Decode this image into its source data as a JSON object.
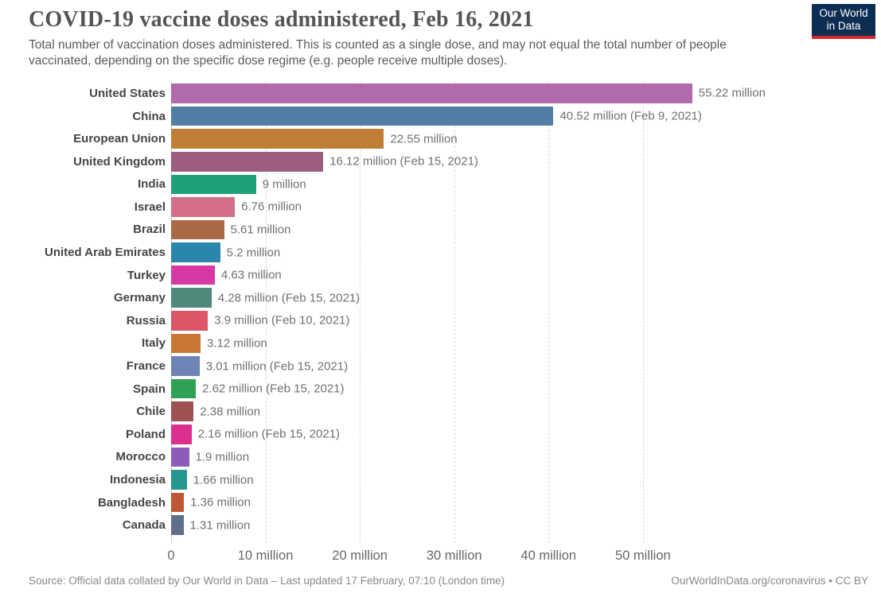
{
  "header": {
    "title": "COVID-19 vaccine doses administered, Feb 16, 2021",
    "subtitle": "Total number of vaccination doses administered. This is counted as a single dose, and may not equal the total number of people vaccinated, depending on the specific dose regime (e.g. people receive multiple doses).",
    "logo": {
      "line1": "Our World",
      "line2": "in Data",
      "bg_color": "#0d2d52",
      "accent_color": "#d7262c"
    }
  },
  "chart_data": {
    "type": "bar",
    "orientation": "horizontal",
    "title": "COVID-19 vaccine doses administered, Feb 16, 2021",
    "xlabel": "",
    "ylabel": "",
    "grid": "vertical-dashed",
    "xlim_million": [
      0,
      73.8
    ],
    "x_ticks": [
      {
        "value": 0,
        "label": "0"
      },
      {
        "value": 10,
        "label": "10 million"
      },
      {
        "value": 20,
        "label": "20 million"
      },
      {
        "value": 30,
        "label": "30 million"
      },
      {
        "value": 40,
        "label": "40 million"
      },
      {
        "value": 50,
        "label": "50 million"
      }
    ],
    "bars": [
      {
        "name": "United States",
        "value_million": 55.22,
        "label": "55.22 million",
        "note": "",
        "color": "#b16bac"
      },
      {
        "name": "China",
        "value_million": 40.52,
        "label": "40.52 million (Feb 9, 2021)",
        "note": "Feb 9, 2021",
        "color": "#527ea5"
      },
      {
        "name": "European Union",
        "value_million": 22.55,
        "label": "22.55 million",
        "note": "",
        "color": "#bf7d35"
      },
      {
        "name": "United Kingdom",
        "value_million": 16.12,
        "label": "16.12 million (Feb 15, 2021)",
        "note": "Feb 15, 2021",
        "color": "#9c5d7e"
      },
      {
        "name": "India",
        "value_million": 9,
        "label": "9 million",
        "note": "",
        "color": "#1fa078"
      },
      {
        "name": "Israel",
        "value_million": 6.76,
        "label": "6.76 million",
        "note": "",
        "color": "#d26e85"
      },
      {
        "name": "Brazil",
        "value_million": 5.61,
        "label": "5.61 million",
        "note": "",
        "color": "#aa6a48"
      },
      {
        "name": "United Arab Emirates",
        "value_million": 5.2,
        "label": "5.2 million",
        "note": "",
        "color": "#2c85ad"
      },
      {
        "name": "Turkey",
        "value_million": 4.63,
        "label": "4.63 million",
        "note": "",
        "color": "#d639a4"
      },
      {
        "name": "Germany",
        "value_million": 4.28,
        "label": "4.28 million (Feb 15, 2021)",
        "note": "Feb 15, 2021",
        "color": "#4f897b"
      },
      {
        "name": "Russia",
        "value_million": 3.9,
        "label": "3.9 million (Feb 10, 2021)",
        "note": "Feb 10, 2021",
        "color": "#dc5667"
      },
      {
        "name": "Italy",
        "value_million": 3.12,
        "label": "3.12 million",
        "note": "",
        "color": "#ca7634"
      },
      {
        "name": "France",
        "value_million": 3.01,
        "label": "3.01 million (Feb 15, 2021)",
        "note": "Feb 15, 2021",
        "color": "#6e84b6"
      },
      {
        "name": "Spain",
        "value_million": 2.62,
        "label": "2.62 million (Feb 15, 2021)",
        "note": "Feb 15, 2021",
        "color": "#2ea153"
      },
      {
        "name": "Chile",
        "value_million": 2.38,
        "label": "2.38 million",
        "note": "",
        "color": "#9e5253"
      },
      {
        "name": "Poland",
        "value_million": 2.16,
        "label": "2.16 million (Feb 15, 2021)",
        "note": "Feb 15, 2021",
        "color": "#dd2f90"
      },
      {
        "name": "Morocco",
        "value_million": 1.9,
        "label": "1.9 million",
        "note": "",
        "color": "#8b5cb9"
      },
      {
        "name": "Indonesia",
        "value_million": 1.66,
        "label": "1.66 million",
        "note": "",
        "color": "#25978e"
      },
      {
        "name": "Bangladesh",
        "value_million": 1.36,
        "label": "1.36 million",
        "note": "",
        "color": "#be5834"
      },
      {
        "name": "Canada",
        "value_million": 1.31,
        "label": "1.31 million",
        "note": "",
        "color": "#5f6e8b"
      }
    ]
  },
  "footer": {
    "source": "Source: Official data collated by Our World in Data – Last updated 17 February, 07:10 (London time)",
    "link": "OurWorldInData.org/coronavirus • CC BY"
  }
}
